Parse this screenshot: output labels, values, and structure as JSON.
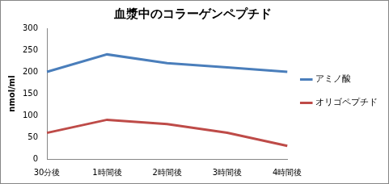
{
  "chart_data": {
    "type": "line",
    "title": "血漿中のコラーゲンペプチド",
    "y_label": "nmol/ml",
    "categories": [
      "30分後",
      "1時間後",
      "2時間後",
      "3時間後",
      "4時間後"
    ],
    "series": [
      {
        "name": "アミノ酸",
        "color": "#4a7ebb",
        "values": [
          200,
          240,
          220,
          210,
          200
        ]
      },
      {
        "name": "オリゴペプチド",
        "color": "#be4b48",
        "values": [
          60,
          90,
          80,
          60,
          30
        ]
      }
    ],
    "ylim": [
      0,
      300
    ],
    "yticks": [
      0,
      50,
      100,
      150,
      200,
      250,
      300
    ],
    "grid": false,
    "legend": "right"
  }
}
